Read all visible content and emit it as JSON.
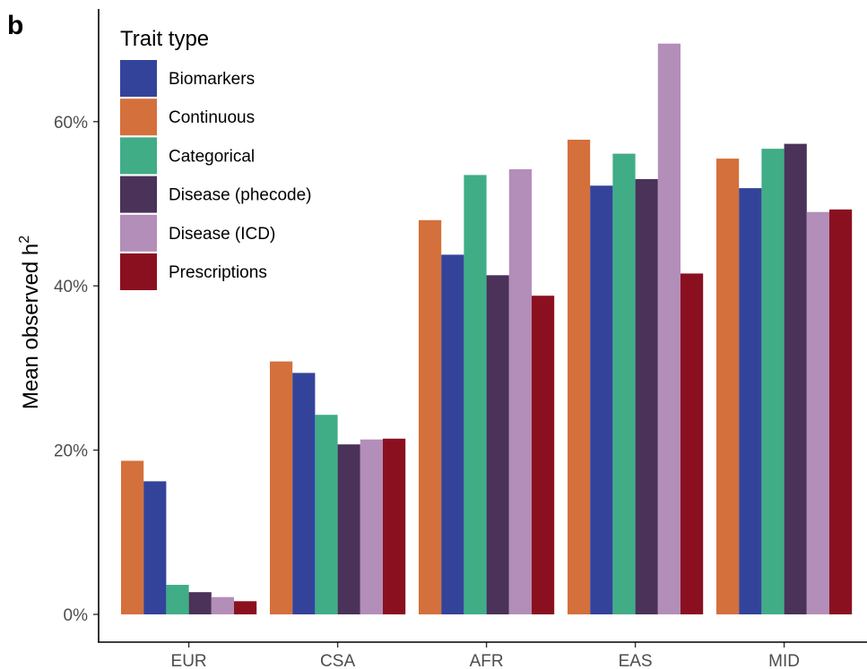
{
  "panel_label": "b",
  "chart_data": {
    "type": "bar",
    "categories": [
      "EUR",
      "CSA",
      "AFR",
      "EAS",
      "MID"
    ],
    "ylabel": "Mean observed h",
    "ylabel_superscript": "2",
    "ylim": [
      0,
      0.72
    ],
    "yticks": [
      0,
      0.2,
      0.4,
      0.6
    ],
    "ytick_labels": [
      "0%",
      "20%",
      "40%",
      "60%"
    ],
    "grid": false,
    "legend": {
      "title": "Trait type",
      "position": "top-left"
    },
    "series": [
      {
        "name": "Continuous",
        "color": "#D4703B",
        "values": [
          0.187,
          0.308,
          0.48,
          0.578,
          0.555
        ]
      },
      {
        "name": "Biomarkers",
        "color": "#34439A",
        "values": [
          0.162,
          0.294,
          0.438,
          0.522,
          0.519
        ]
      },
      {
        "name": "Categorical",
        "color": "#40AD87",
        "values": [
          0.036,
          0.243,
          0.535,
          0.561,
          0.567
        ]
      },
      {
        "name": "Disease (phecode)",
        "color": "#4A3259",
        "values": [
          0.027,
          0.207,
          0.413,
          0.53,
          0.573
        ]
      },
      {
        "name": "Disease (ICD)",
        "color": "#B38EB9",
        "values": [
          0.021,
          0.213,
          0.542,
          0.695,
          0.49
        ]
      },
      {
        "name": "Prescriptions",
        "color": "#8A1020",
        "values": [
          0.016,
          0.214,
          0.388,
          0.415,
          0.493
        ]
      }
    ],
    "legend_order": [
      "Biomarkers",
      "Continuous",
      "Categorical",
      "Disease (phecode)",
      "Disease (ICD)",
      "Prescriptions"
    ]
  }
}
